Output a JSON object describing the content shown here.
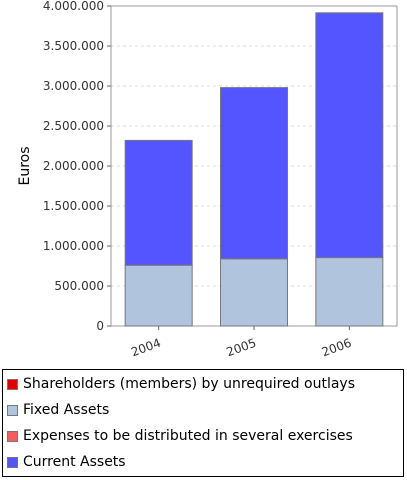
{
  "chart_data": {
    "type": "bar",
    "stacked": true,
    "categories": [
      "2004",
      "2005",
      "2006"
    ],
    "ylabel": "Euros",
    "ylim": [
      0,
      4000000
    ],
    "yticks": [
      0,
      500000,
      1000000,
      1500000,
      2000000,
      2500000,
      3000000,
      3500000,
      4000000
    ],
    "ytick_labels": [
      "0",
      "500.000",
      "1.000.000",
      "1.500.000",
      "2.000.000",
      "2.500.000",
      "3.000.000",
      "3.500.000",
      "4.000.000"
    ],
    "grid": true,
    "legend_position": "bottom",
    "series": [
      {
        "name": "Shareholders (members) by unrequired outlays",
        "values": [
          0,
          0,
          0
        ],
        "color": "#e00000"
      },
      {
        "name": "Fixed Assets",
        "values": [
          760000,
          840000,
          855000
        ],
        "color": "#b0c4de"
      },
      {
        "name": "Expenses to be distributed in several exercises",
        "values": [
          0,
          0,
          0
        ],
        "color": "#f06060"
      },
      {
        "name": "Current Assets",
        "values": [
          1560000,
          2140000,
          3060000
        ],
        "color": "#5555ff"
      }
    ]
  }
}
